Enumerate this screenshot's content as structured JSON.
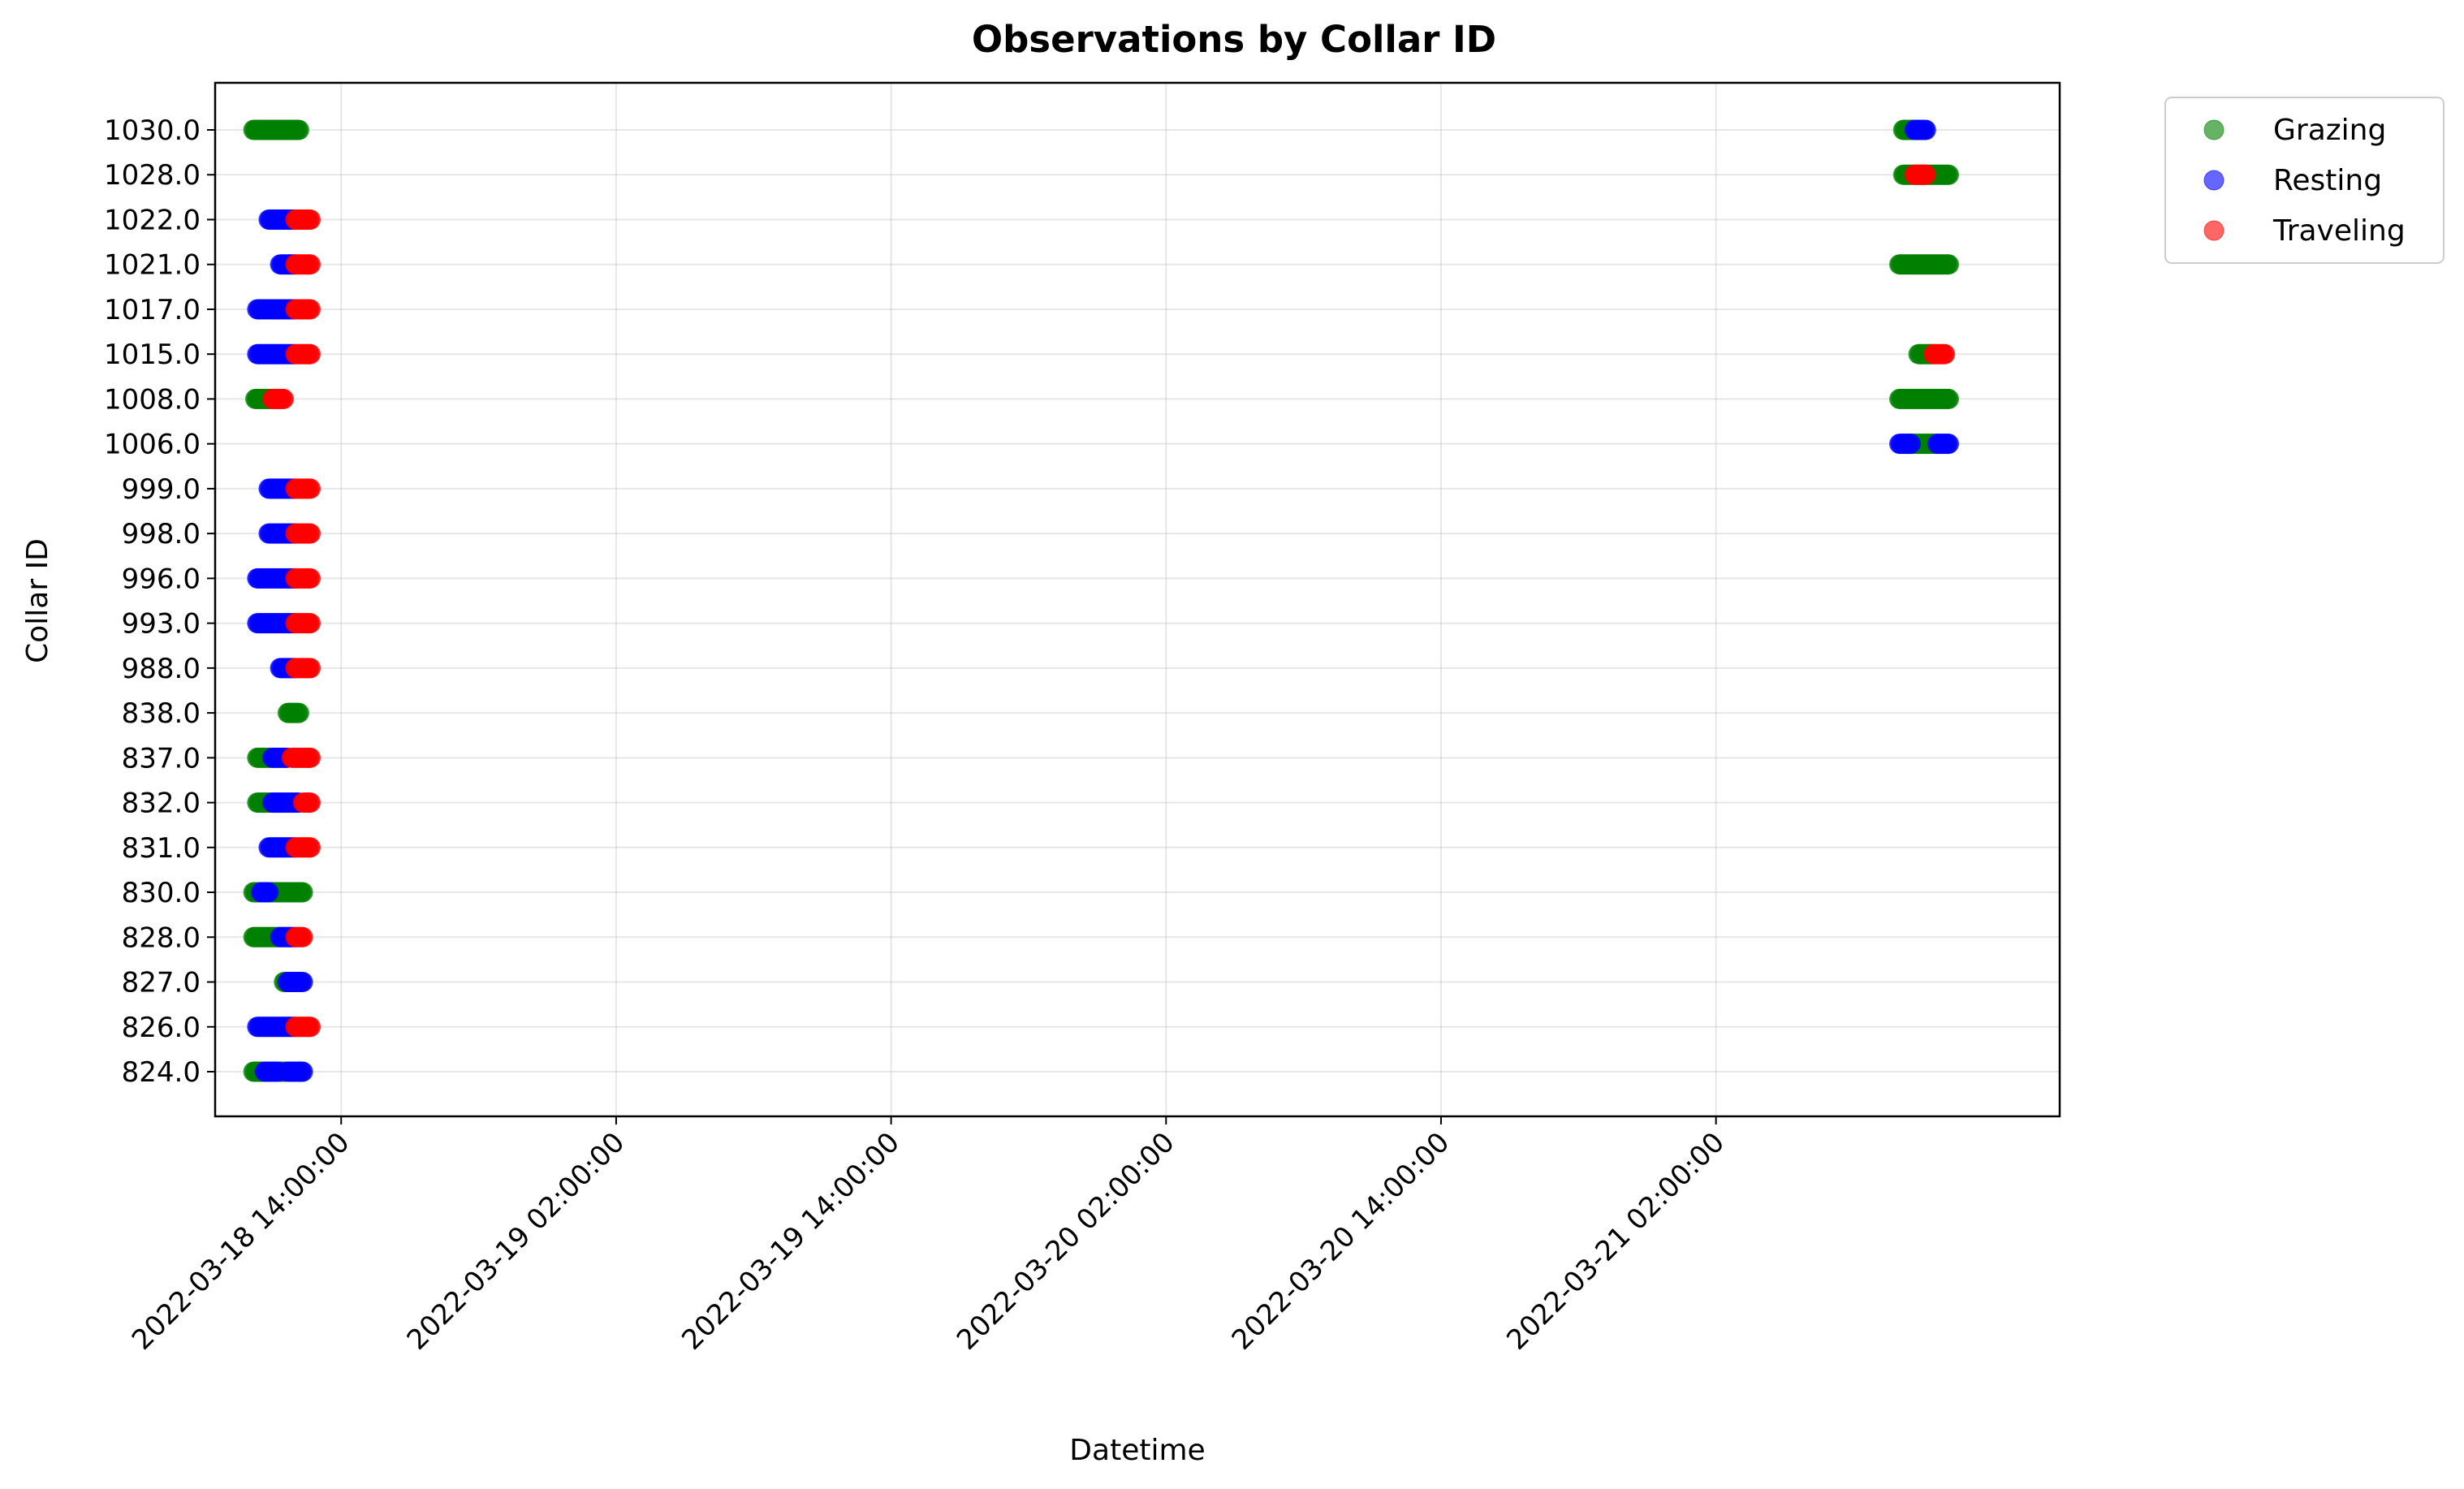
{
  "chart_data": {
    "type": "scatter",
    "title": "Observations by Collar ID",
    "xlabel": "Datetime",
    "ylabel": "Collar ID",
    "x_axis": {
      "kind": "datetime",
      "xlim": [
        "2022-03-18 08:30:00",
        "2022-03-21 17:00:00"
      ],
      "ticks": [
        "2022-03-18 14:00:00",
        "2022-03-19 02:00:00",
        "2022-03-19 14:00:00",
        "2022-03-20 02:00:00",
        "2022-03-20 14:00:00",
        "2022-03-21 02:00:00"
      ]
    },
    "y_categories": [
      "824.0",
      "826.0",
      "827.0",
      "828.0",
      "830.0",
      "831.0",
      "832.0",
      "837.0",
      "838.0",
      "988.0",
      "993.0",
      "996.0",
      "998.0",
      "999.0",
      "1006.0",
      "1008.0",
      "1015.0",
      "1017.0",
      "1021.0",
      "1022.0",
      "1028.0",
      "1030.0"
    ],
    "grid": true,
    "legend_position": "outside-top-right",
    "series": [
      {
        "name": "Grazing",
        "color": "#008000",
        "points": [
          {
            "id": "1030.0",
            "from": "2022-03-18 10:10:00",
            "to": "2022-03-18 12:10:00"
          },
          {
            "id": "1008.0",
            "from": "2022-03-18 10:15:00",
            "to": "2022-03-18 11:00:00"
          },
          {
            "id": "838.0",
            "from": "2022-03-18 11:40:00",
            "to": "2022-03-18 12:10:00"
          },
          {
            "id": "837.0",
            "from": "2022-03-18 10:20:00",
            "to": "2022-03-18 11:00:00"
          },
          {
            "id": "832.0",
            "from": "2022-03-18 10:20:00",
            "to": "2022-03-18 11:00:00"
          },
          {
            "id": "830.0",
            "from": "2022-03-18 10:10:00",
            "to": "2022-03-18 12:20:00"
          },
          {
            "id": "828.0",
            "from": "2022-03-18 10:10:00",
            "to": "2022-03-18 11:20:00"
          },
          {
            "id": "827.0",
            "from": "2022-03-18 11:30:00",
            "to": "2022-03-18 11:50:00"
          },
          {
            "id": "824.0",
            "from": "2022-03-18 10:10:00",
            "to": "2022-03-18 10:40:00"
          },
          {
            "id": "824.0",
            "from": "2022-03-18 11:20:00",
            "to": "2022-03-18 11:35:00"
          },
          {
            "id": "1030.0",
            "from": "2022-03-21 10:10:00",
            "to": "2022-03-21 10:40:00"
          },
          {
            "id": "1028.0",
            "from": "2022-03-21 10:10:00",
            "to": "2022-03-21 12:10:00"
          },
          {
            "id": "1021.0",
            "from": "2022-03-21 10:00:00",
            "to": "2022-03-21 12:10:00"
          },
          {
            "id": "1015.0",
            "from": "2022-03-21 10:50:00",
            "to": "2022-03-21 11:30:00"
          },
          {
            "id": "1008.0",
            "from": "2022-03-21 10:00:00",
            "to": "2022-03-21 12:10:00"
          },
          {
            "id": "1006.0",
            "from": "2022-03-21 10:20:00",
            "to": "2022-03-21 11:40:00"
          }
        ]
      },
      {
        "name": "Resting",
        "color": "#0000ff",
        "points": [
          {
            "id": "1022.0",
            "from": "2022-03-18 10:50:00",
            "to": "2022-03-18 12:10:00"
          },
          {
            "id": "1021.0",
            "from": "2022-03-18 11:20:00",
            "to": "2022-03-18 12:00:00"
          },
          {
            "id": "1017.0",
            "from": "2022-03-18 10:20:00",
            "to": "2022-03-18 12:00:00"
          },
          {
            "id": "1015.0",
            "from": "2022-03-18 10:20:00",
            "to": "2022-03-18 12:00:00"
          },
          {
            "id": "999.0",
            "from": "2022-03-18 10:50:00",
            "to": "2022-03-18 12:00:00"
          },
          {
            "id": "998.0",
            "from": "2022-03-18 10:50:00",
            "to": "2022-03-18 12:00:00"
          },
          {
            "id": "996.0",
            "from": "2022-03-18 10:20:00",
            "to": "2022-03-18 12:00:00"
          },
          {
            "id": "993.0",
            "from": "2022-03-18 10:20:00",
            "to": "2022-03-18 12:00:00"
          },
          {
            "id": "988.0",
            "from": "2022-03-18 11:20:00",
            "to": "2022-03-18 12:00:00"
          },
          {
            "id": "837.0",
            "from": "2022-03-18 11:00:00",
            "to": "2022-03-18 11:40:00"
          },
          {
            "id": "832.0",
            "from": "2022-03-18 11:00:00",
            "to": "2022-03-18 12:10:00"
          },
          {
            "id": "831.0",
            "from": "2022-03-18 10:50:00",
            "to": "2022-03-18 12:00:00"
          },
          {
            "id": "830.0",
            "from": "2022-03-18 10:30:00",
            "to": "2022-03-18 10:50:00"
          },
          {
            "id": "828.0",
            "from": "2022-03-18 11:20:00",
            "to": "2022-03-18 12:00:00"
          },
          {
            "id": "827.0",
            "from": "2022-03-18 11:40:00",
            "to": "2022-03-18 12:20:00"
          },
          {
            "id": "826.0",
            "from": "2022-03-18 10:20:00",
            "to": "2022-03-18 12:00:00"
          },
          {
            "id": "824.0",
            "from": "2022-03-18 10:40:00",
            "to": "2022-03-18 11:15:00"
          },
          {
            "id": "824.0",
            "from": "2022-03-18 11:40:00",
            "to": "2022-03-18 12:20:00"
          },
          {
            "id": "1030.0",
            "from": "2022-03-21 10:40:00",
            "to": "2022-03-21 11:10:00"
          },
          {
            "id": "1006.0",
            "from": "2022-03-21 10:00:00",
            "to": "2022-03-21 10:30:00"
          },
          {
            "id": "1006.0",
            "from": "2022-03-21 11:40:00",
            "to": "2022-03-21 12:10:00"
          }
        ]
      },
      {
        "name": "Traveling",
        "color": "#ff0000",
        "points": [
          {
            "id": "1022.0",
            "from": "2022-03-18 12:00:00",
            "to": "2022-03-18 12:40:00"
          },
          {
            "id": "1021.0",
            "from": "2022-03-18 12:00:00",
            "to": "2022-03-18 12:40:00"
          },
          {
            "id": "1017.0",
            "from": "2022-03-18 12:00:00",
            "to": "2022-03-18 12:40:00"
          },
          {
            "id": "1015.0",
            "from": "2022-03-18 12:00:00",
            "to": "2022-03-18 12:40:00"
          },
          {
            "id": "1008.0",
            "from": "2022-03-18 11:00:00",
            "to": "2022-03-18 11:30:00"
          },
          {
            "id": "999.0",
            "from": "2022-03-18 12:00:00",
            "to": "2022-03-18 12:40:00"
          },
          {
            "id": "998.0",
            "from": "2022-03-18 12:00:00",
            "to": "2022-03-18 12:40:00"
          },
          {
            "id": "996.0",
            "from": "2022-03-18 12:00:00",
            "to": "2022-03-18 12:40:00"
          },
          {
            "id": "993.0",
            "from": "2022-03-18 12:00:00",
            "to": "2022-03-18 12:40:00"
          },
          {
            "id": "988.0",
            "from": "2022-03-18 12:00:00",
            "to": "2022-03-18 12:40:00"
          },
          {
            "id": "837.0",
            "from": "2022-03-18 11:50:00",
            "to": "2022-03-18 12:40:00"
          },
          {
            "id": "832.0",
            "from": "2022-03-18 12:20:00",
            "to": "2022-03-18 12:40:00"
          },
          {
            "id": "831.0",
            "from": "2022-03-18 12:00:00",
            "to": "2022-03-18 12:40:00"
          },
          {
            "id": "828.0",
            "from": "2022-03-18 12:00:00",
            "to": "2022-03-18 12:20:00"
          },
          {
            "id": "826.0",
            "from": "2022-03-18 12:00:00",
            "to": "2022-03-18 12:40:00"
          },
          {
            "id": "1028.0",
            "from": "2022-03-21 10:40:00",
            "to": "2022-03-21 11:10:00"
          },
          {
            "id": "1015.0",
            "from": "2022-03-21 11:30:00",
            "to": "2022-03-21 12:00:00"
          }
        ]
      }
    ]
  }
}
